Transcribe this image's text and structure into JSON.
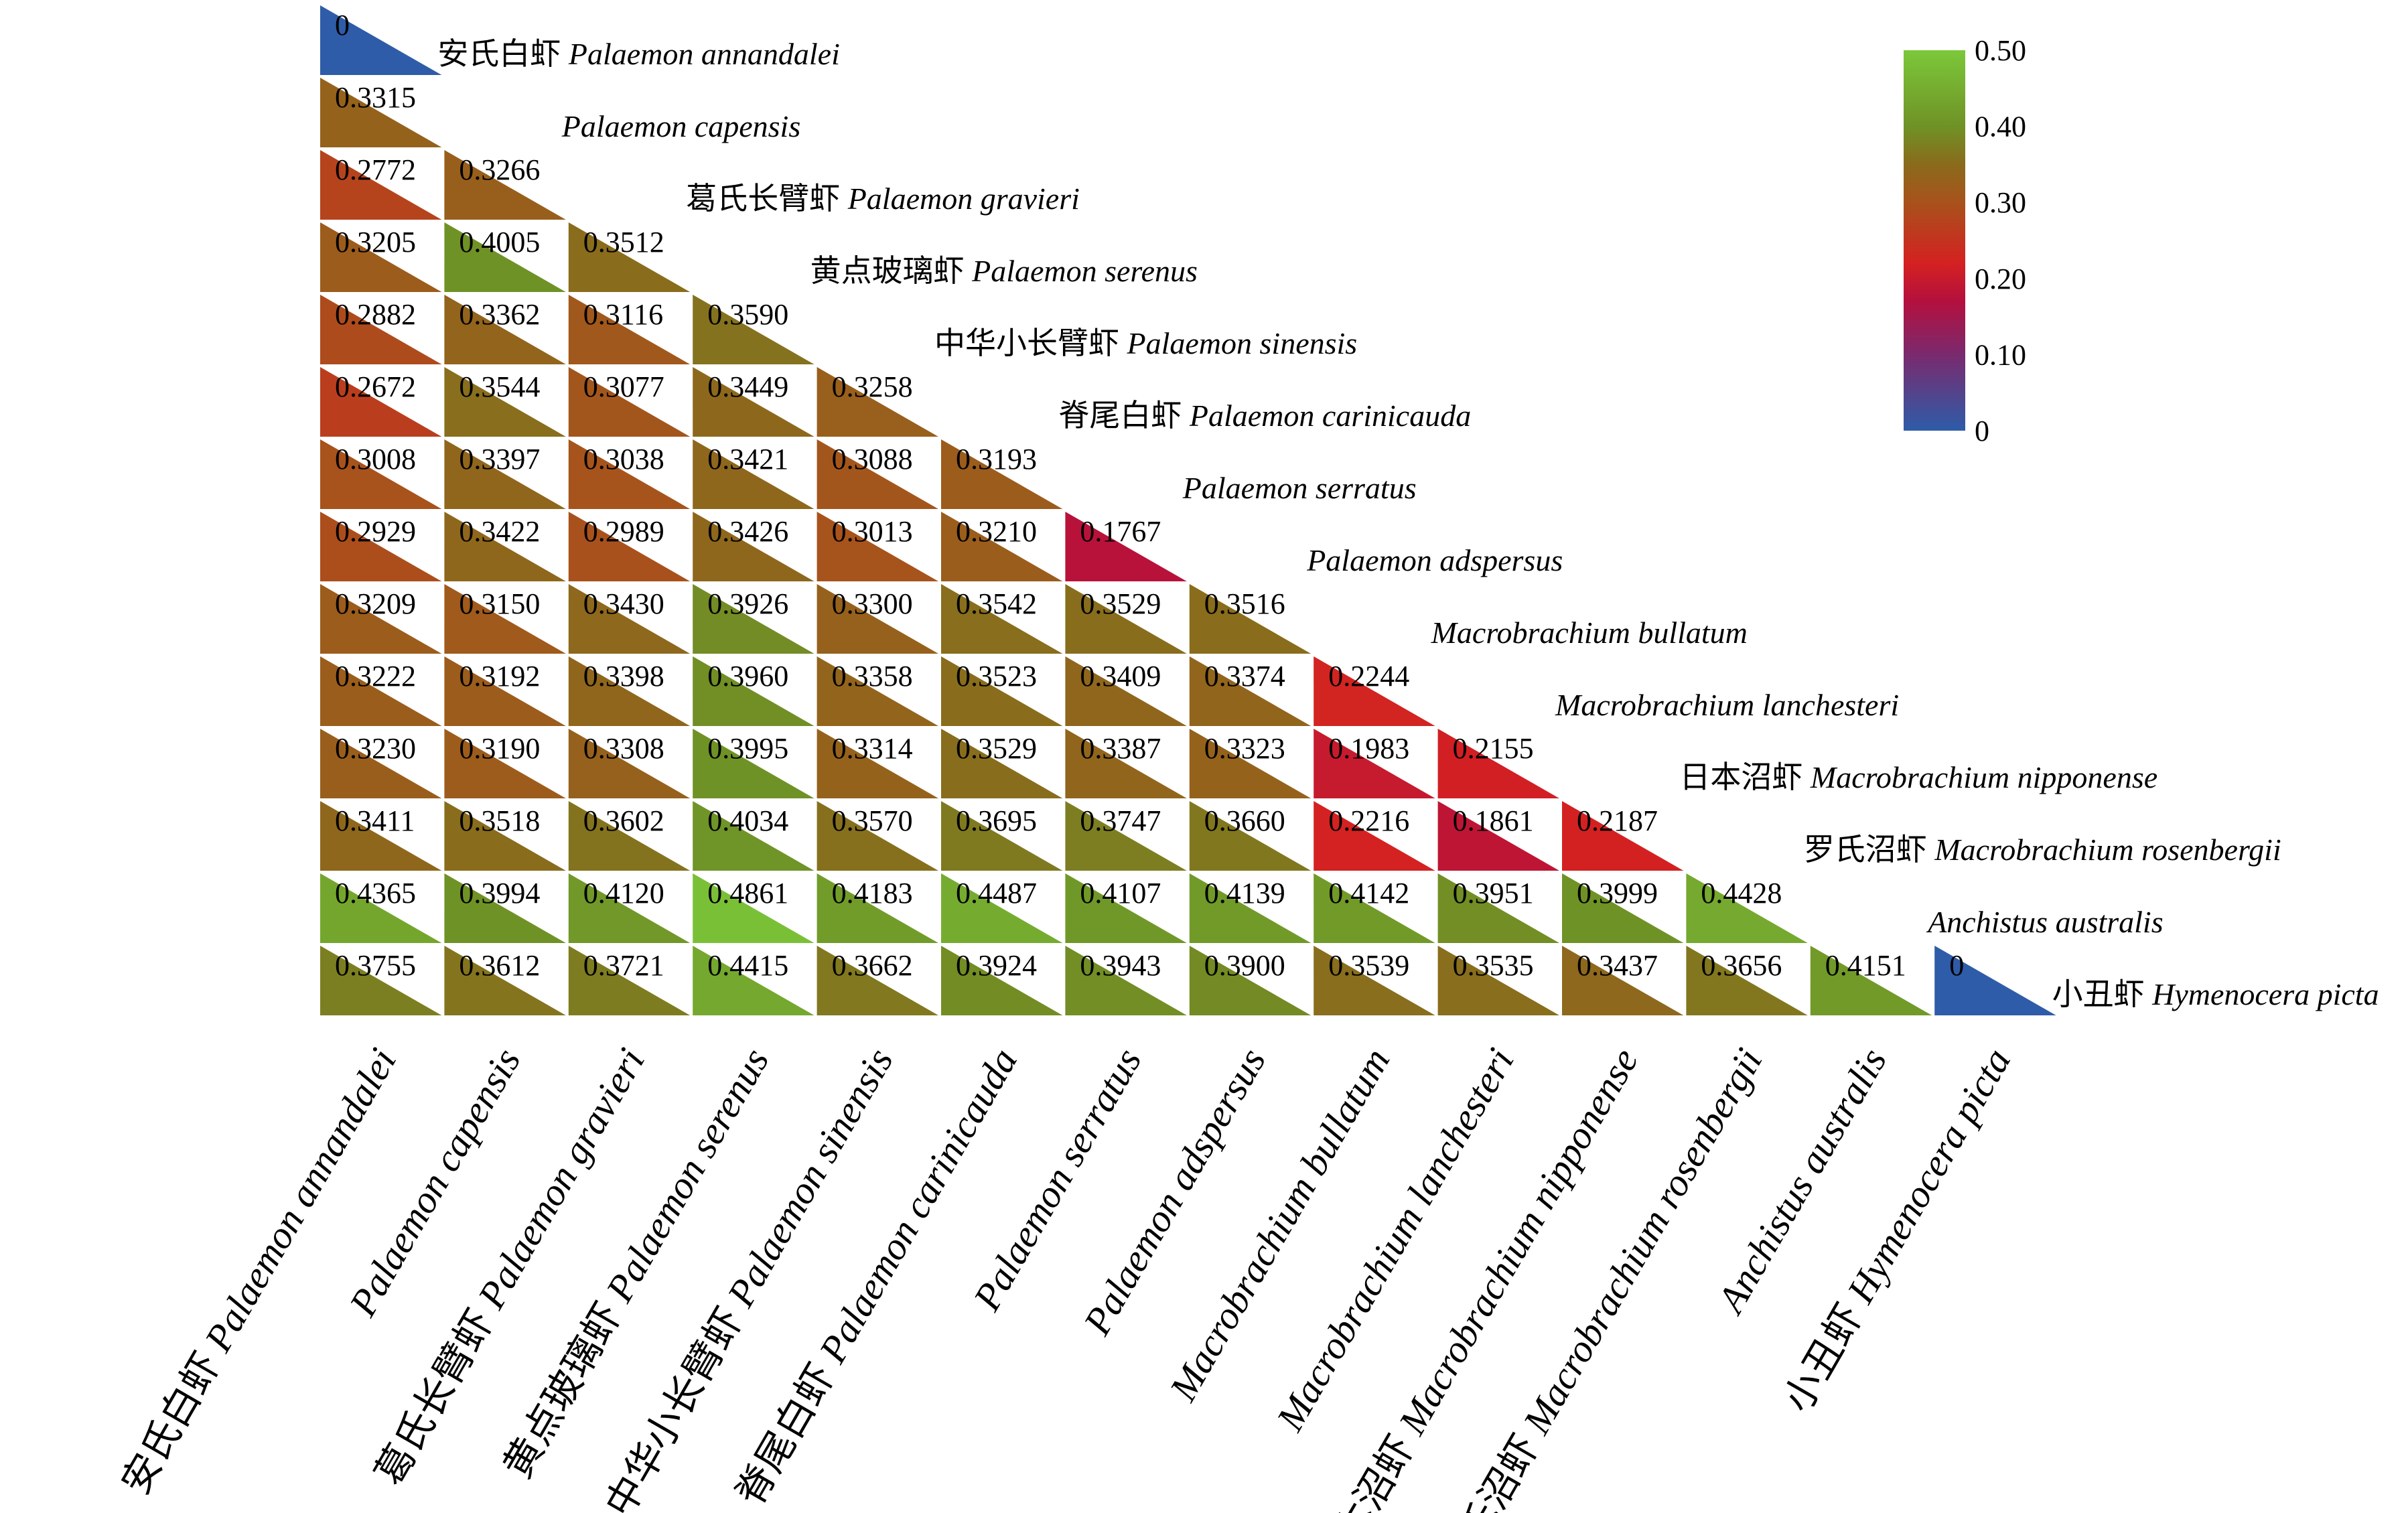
{
  "chart_data": {
    "type": "heatmap",
    "layout": "lower-triangular",
    "species": [
      {
        "cn": "安氏白虾",
        "latin": "Palaemon annandalei"
      },
      {
        "cn": "",
        "latin": "Palaemon capensis"
      },
      {
        "cn": "葛氏长臂虾",
        "latin": "Palaemon gravieri"
      },
      {
        "cn": "黄点玻璃虾",
        "latin": "Palaemon serenus"
      },
      {
        "cn": "中华小长臂虾",
        "latin": "Palaemon sinensis"
      },
      {
        "cn": "脊尾白虾",
        "latin": "Palaemon carinicauda"
      },
      {
        "cn": "",
        "latin": "Palaemon serratus"
      },
      {
        "cn": "",
        "latin": "Palaemon adspersus"
      },
      {
        "cn": "",
        "latin": "Macrobrachium bullatum"
      },
      {
        "cn": "",
        "latin": "Macrobrachium lanchesteri"
      },
      {
        "cn": "日本沼虾",
        "latin": "Macrobrachium nipponense"
      },
      {
        "cn": "罗氏沼虾",
        "latin": "Macrobrachium rosenbergii"
      },
      {
        "cn": "",
        "latin": "Anchistus australis"
      },
      {
        "cn": "小丑虾",
        "latin": "Hymenocera picta"
      }
    ],
    "values": [
      [
        "0"
      ],
      [
        "0.3315"
      ],
      [
        "0.2772",
        "0.3266"
      ],
      [
        "0.3205",
        "0.4005",
        "0.3512"
      ],
      [
        "0.2882",
        "0.3362",
        "0.3116",
        "0.3590"
      ],
      [
        "0.2672",
        "0.3544",
        "0.3077",
        "0.3449",
        "0.3258"
      ],
      [
        "0.3008",
        "0.3397",
        "0.3038",
        "0.3421",
        "0.3088",
        "0.3193"
      ],
      [
        "0.2929",
        "0.3422",
        "0.2989",
        "0.3426",
        "0.3013",
        "0.3210",
        "0.1767"
      ],
      [
        "0.3209",
        "0.3150",
        "0.3430",
        "0.3926",
        "0.3300",
        "0.3542",
        "0.3529",
        "0.3516"
      ],
      [
        "0.3222",
        "0.3192",
        "0.3398",
        "0.3960",
        "0.3358",
        "0.3523",
        "0.3409",
        "0.3374",
        "0.2244"
      ],
      [
        "0.3230",
        "0.3190",
        "0.3308",
        "0.3995",
        "0.3314",
        "0.3529",
        "0.3387",
        "0.3323",
        "0.1983",
        "0.2155"
      ],
      [
        "0.3411",
        "0.3518",
        "0.3602",
        "0.4034",
        "0.3570",
        "0.3695",
        "0.3747",
        "0.3660",
        "0.2216",
        "0.1861",
        "0.2187"
      ],
      [
        "0.4365",
        "0.3994",
        "0.4120",
        "0.4861",
        "0.4183",
        "0.4487",
        "0.4107",
        "0.4139",
        "0.4142",
        "0.3951",
        "0.3999",
        "0.4428"
      ],
      [
        "0.3755",
        "0.3612",
        "0.3721",
        "0.4415",
        "0.3662",
        "0.3924",
        "0.3943",
        "0.3900",
        "0.3539",
        "0.3535",
        "0.3437",
        "0.3656",
        "0.4151",
        "0"
      ]
    ],
    "colorbar": {
      "ticks": [
        "0.50",
        "0.40",
        "0.30",
        "0.20",
        "0.10",
        "0"
      ],
      "range": [
        0,
        0.5
      ],
      "stops": [
        {
          "v": 0.0,
          "color": "#2e5ca8"
        },
        {
          "v": 0.1,
          "color": "#7a2a6e"
        },
        {
          "v": 0.17,
          "color": "#b4103e"
        },
        {
          "v": 0.22,
          "color": "#d42121"
        },
        {
          "v": 0.3,
          "color": "#a8521c"
        },
        {
          "v": 0.35,
          "color": "#8a6b1c"
        },
        {
          "v": 0.4,
          "color": "#6f9226"
        },
        {
          "v": 0.5,
          "color": "#7cc83a"
        }
      ]
    }
  }
}
